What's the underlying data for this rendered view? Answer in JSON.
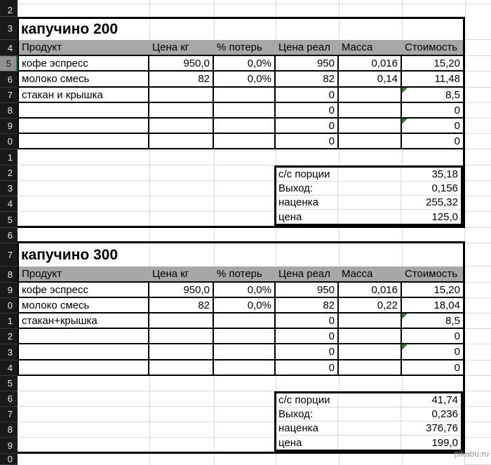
{
  "watermark": "pikabu.ru",
  "colors": {
    "row_strip_bg": "#191919",
    "header_band": "#a7a7a7",
    "gridline": "#d9d9d9",
    "selection_green": "#1e7e45",
    "error_flag_green": "#2e7d32"
  },
  "sheet": {
    "row_headers": [
      "2",
      "3",
      "4",
      "5",
      "6",
      "7",
      "8",
      "9",
      "0",
      "1",
      "2",
      "3",
      "4",
      "5",
      "6",
      "7",
      "8",
      "9",
      "0",
      "1",
      "2",
      "3",
      "4",
      "5",
      "6",
      "7",
      "8",
      "9",
      "0"
    ],
    "selected_row_header": "5",
    "columns": [
      "Продукт",
      "Цена кг",
      "% потерь",
      "Цена реал",
      "Масса",
      "Стоимость"
    ],
    "blocks": [
      {
        "title": "капучино 200",
        "rows": [
          {
            "product": "кофе эспресс",
            "price_kg": "950,0",
            "loss_pct": "0,0%",
            "price_real": "950",
            "mass": "0,016",
            "cost": "15,20"
          },
          {
            "product": "молоко смесь",
            "price_kg": "82",
            "loss_pct": "0,0%",
            "price_real": "82",
            "mass": "0,14",
            "cost": "11,48"
          },
          {
            "product": "стакан и крышка",
            "price_kg": "",
            "loss_pct": "",
            "price_real": "0",
            "mass": "",
            "cost": "8,5"
          },
          {
            "product": "",
            "price_kg": "",
            "loss_pct": "",
            "price_real": "0",
            "mass": "",
            "cost": "0"
          },
          {
            "product": "",
            "price_kg": "",
            "loss_pct": "",
            "price_real": "0",
            "mass": "",
            "cost": "0"
          },
          {
            "product": "",
            "price_kg": "",
            "loss_pct": "",
            "price_real": "0",
            "mass": "",
            "cost": "0"
          }
        ],
        "summary": [
          {
            "label": "с/с порции",
            "value": "35,18"
          },
          {
            "label": "Выход:",
            "value": "0,156"
          },
          {
            "label": "наценка",
            "value": "255,32"
          },
          {
            "label": "цена",
            "value": "125,0"
          }
        ]
      },
      {
        "title": "капучино 300",
        "rows": [
          {
            "product": "кофе эспресс",
            "price_kg": "950,0",
            "loss_pct": "0,0%",
            "price_real": "950",
            "mass": "0,016",
            "cost": "15,20"
          },
          {
            "product": "молоко смесь",
            "price_kg": "82",
            "loss_pct": "0,0%",
            "price_real": "82",
            "mass": "0,22",
            "cost": "18,04"
          },
          {
            "product": "стакан+крышка",
            "price_kg": "",
            "loss_pct": "",
            "price_real": "0",
            "mass": "",
            "cost": "8,5"
          },
          {
            "product": "",
            "price_kg": "",
            "loss_pct": "",
            "price_real": "0",
            "mass": "",
            "cost": "0"
          },
          {
            "product": "",
            "price_kg": "",
            "loss_pct": "",
            "price_real": "0",
            "mass": "",
            "cost": "0"
          },
          {
            "product": "",
            "price_kg": "",
            "loss_pct": "",
            "price_real": "0",
            "mass": "",
            "cost": "0"
          }
        ],
        "summary": [
          {
            "label": "с/с порции",
            "value": "41,74"
          },
          {
            "label": "Выход:",
            "value": "0,236"
          },
          {
            "label": "наценка",
            "value": "376,76"
          },
          {
            "label": "цена",
            "value": "199,0"
          }
        ]
      }
    ]
  }
}
